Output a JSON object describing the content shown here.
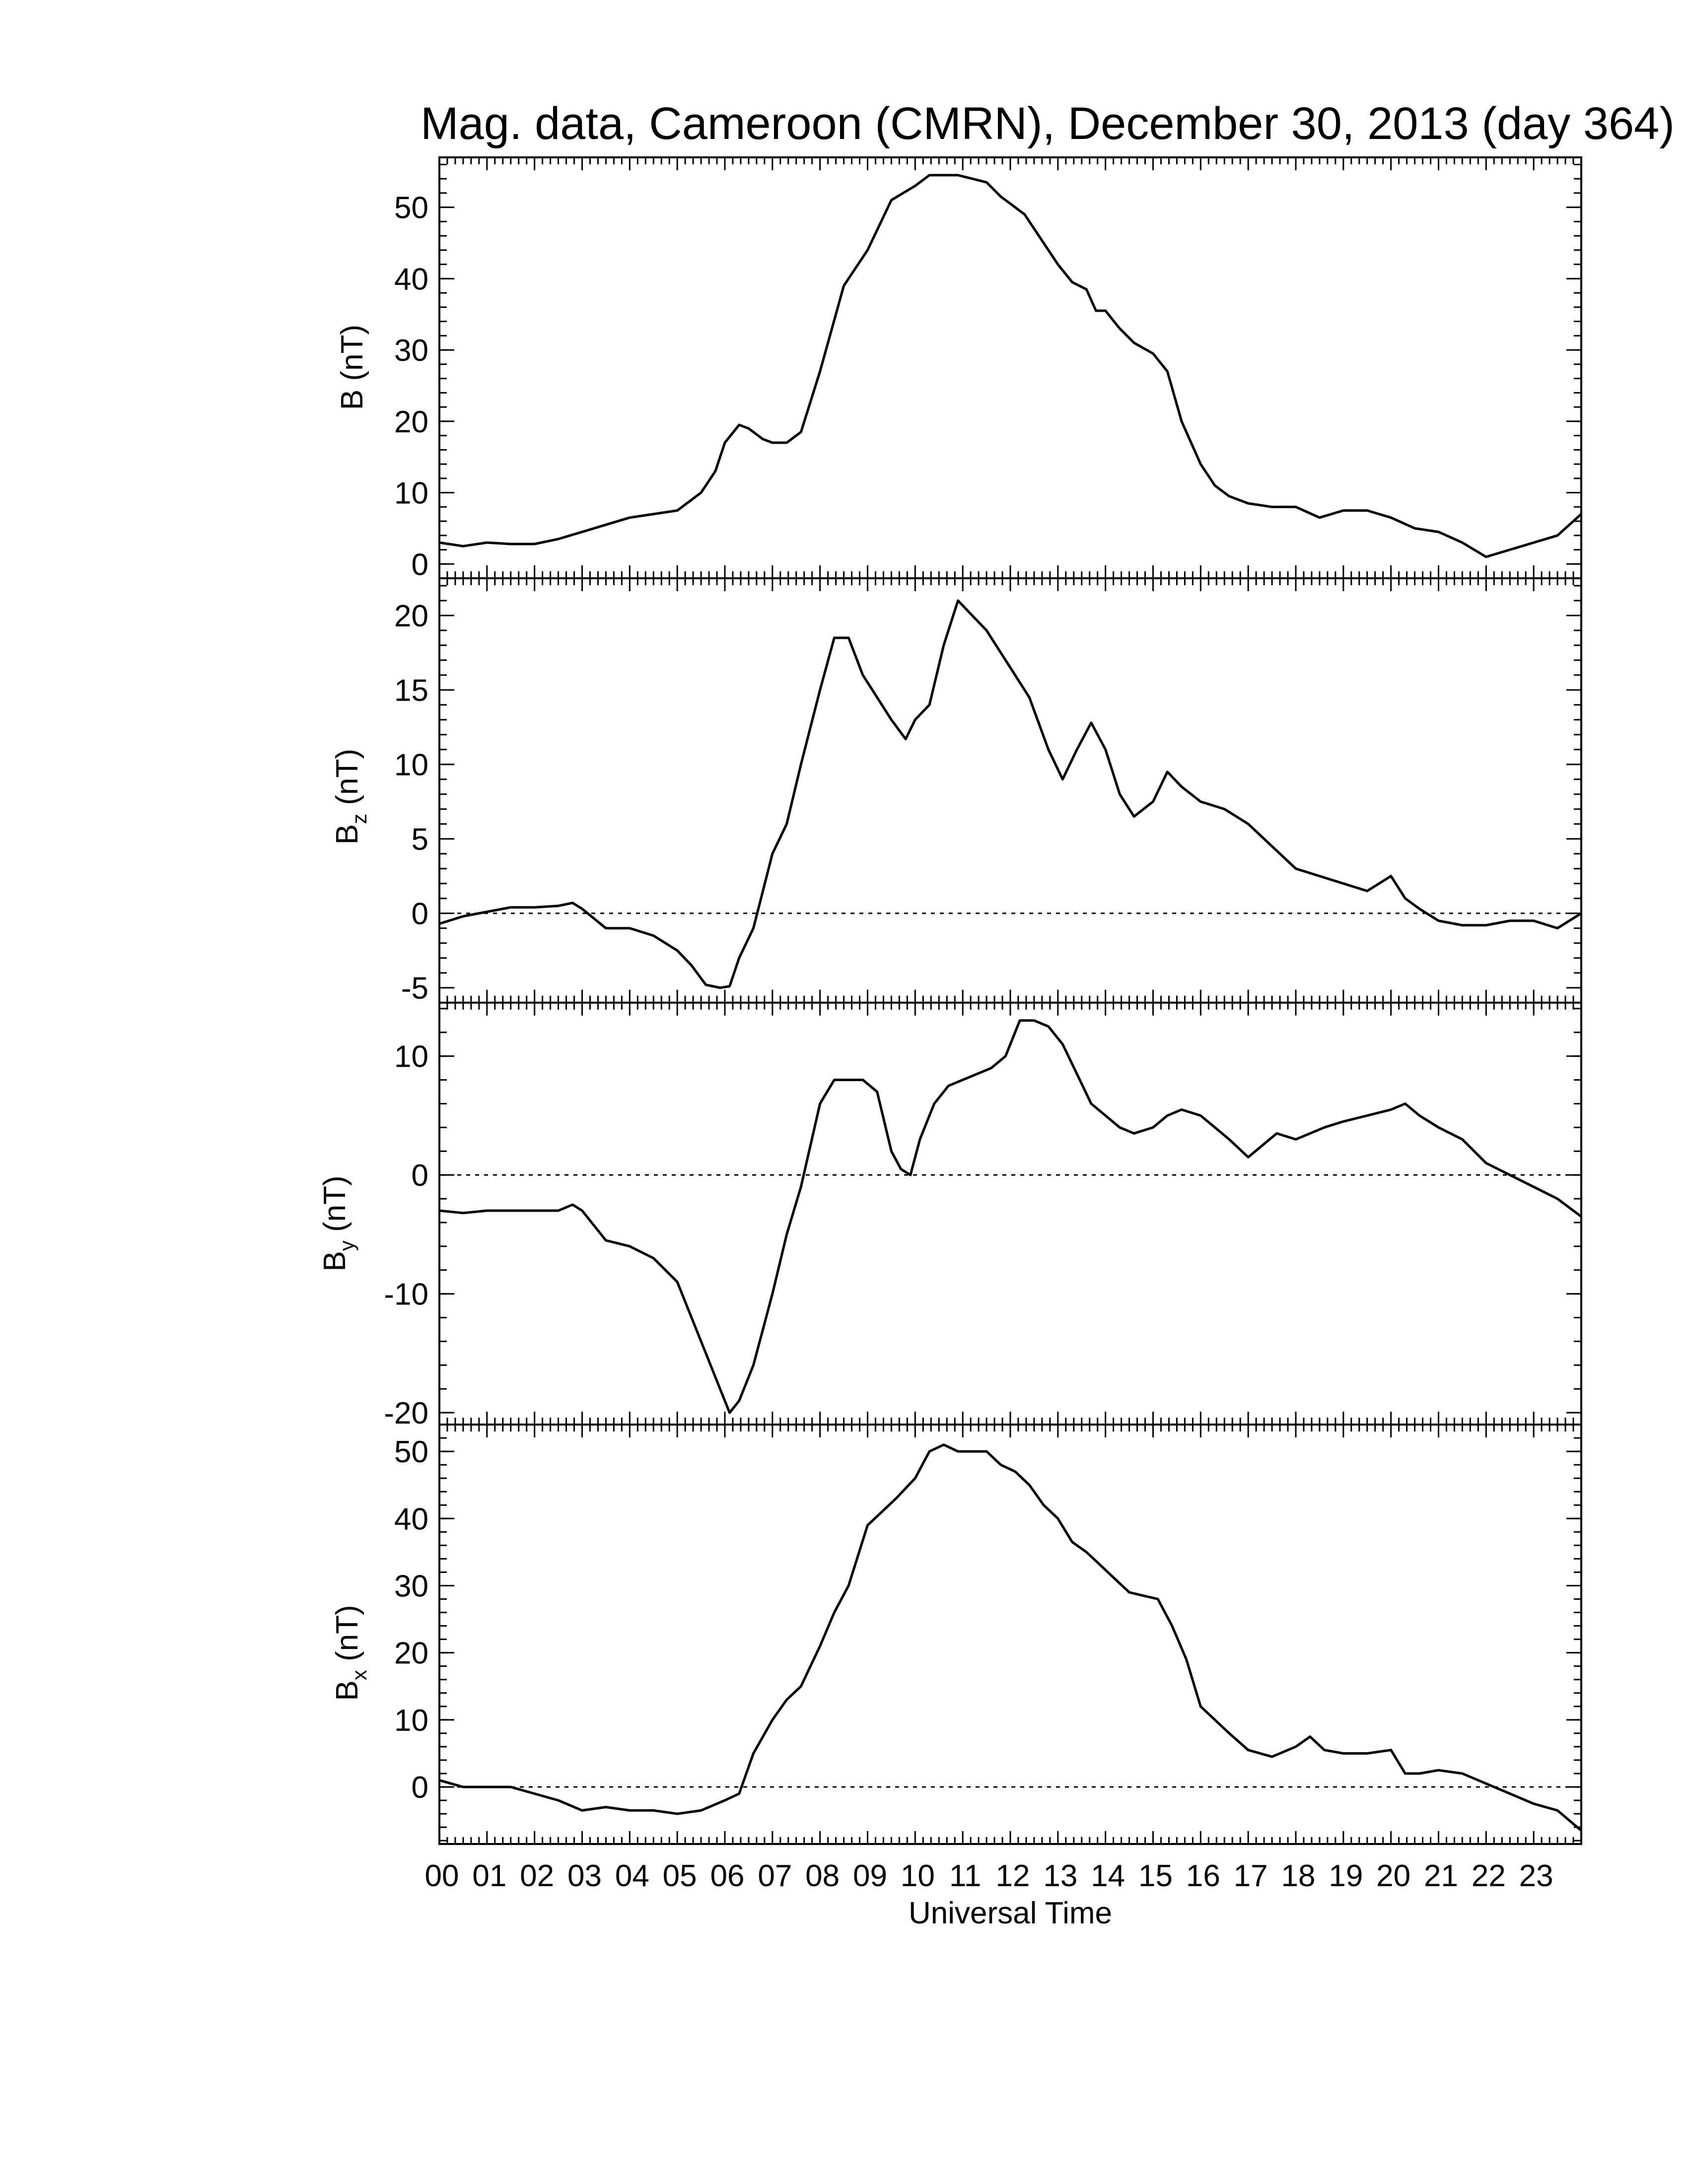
{
  "title": "Mag. data, Cameroon (CMRN), December 30, 2013 (day 364)",
  "chart_data": [
    {
      "type": "line",
      "ylabel": "B (nT)",
      "ylabel_sub": "",
      "ylim": [
        -2,
        57
      ],
      "yticks": [
        0,
        10,
        20,
        30,
        40,
        50
      ],
      "zero_line": false,
      "x": [
        0,
        0.5,
        1,
        1.5,
        2,
        2.5,
        3,
        3.5,
        4,
        4.5,
        5,
        5.5,
        5.8,
        6,
        6.3,
        6.5,
        6.8,
        7,
        7.3,
        7.6,
        8,
        8.5,
        9,
        9.5,
        10,
        10.3,
        10.6,
        10.9,
        11.2,
        11.5,
        11.8,
        12,
        12.3,
        12.6,
        13,
        13.3,
        13.6,
        13.8,
        14,
        14.3,
        14.6,
        15,
        15.3,
        15.6,
        16,
        16.3,
        16.6,
        17,
        17.5,
        18,
        18.5,
        19,
        19.5,
        20,
        20.5,
        21,
        21.5,
        22,
        22.5,
        23,
        23.5,
        24
      ],
      "y": [
        3,
        2.5,
        3,
        2.8,
        2.8,
        3.5,
        4.5,
        5.5,
        6.5,
        7,
        7.5,
        10,
        13,
        17,
        19.5,
        19,
        17.5,
        17,
        17,
        18.5,
        27,
        39,
        44,
        51,
        53,
        54.5,
        54.5,
        54.5,
        54,
        53.5,
        51.5,
        50.5,
        49,
        46,
        42,
        39.5,
        38.5,
        35.5,
        35.5,
        33,
        31,
        29.5,
        27,
        20,
        14,
        11,
        9.5,
        8.5,
        8,
        8,
        6.5,
        7.5,
        7.5,
        6.5,
        5,
        4.5,
        3,
        1,
        2,
        3,
        4,
        7
      ]
    },
    {
      "type": "line",
      "ylabel": "B",
      "ylabel_sub": "z",
      "ylabel_unit": " (nT)",
      "ylim": [
        -6,
        22.5
      ],
      "yticks": [
        -5,
        0,
        5,
        10,
        15,
        20
      ],
      "zero_line": true,
      "x": [
        0,
        0.5,
        1,
        1.5,
        2,
        2.5,
        2.8,
        3,
        3.5,
        4,
        4.5,
        5,
        5.3,
        5.6,
        5.9,
        6.1,
        6.3,
        6.6,
        7,
        7.3,
        7.6,
        8,
        8.3,
        8.6,
        8.9,
        9.2,
        9.5,
        9.8,
        10,
        10.3,
        10.6,
        10.9,
        11.2,
        11.5,
        11.8,
        12.1,
        12.4,
        12.8,
        13.1,
        13.4,
        13.7,
        14,
        14.3,
        14.6,
        15,
        15.3,
        15.6,
        16,
        16.5,
        17,
        17.5,
        18,
        18.5,
        19,
        19.5,
        20,
        20.3,
        20.6,
        21,
        21.5,
        22,
        22.5,
        23,
        23.5,
        24
      ],
      "y": [
        -0.7,
        -0.2,
        0.1,
        0.4,
        0.4,
        0.5,
        0.7,
        0.3,
        -1,
        -1,
        -1.5,
        -2.5,
        -3.5,
        -4.8,
        -5,
        -4.9,
        -3,
        -1,
        4,
        6,
        10,
        15,
        18.5,
        18.5,
        16,
        14.5,
        13,
        11.7,
        13,
        14,
        18,
        21,
        20,
        19,
        17.5,
        16,
        14.5,
        11,
        9,
        11,
        12.8,
        11,
        8,
        6.5,
        7.5,
        9.5,
        8.5,
        7.5,
        7,
        6,
        4.5,
        3,
        2.5,
        2,
        1.5,
        2.5,
        1,
        0.3,
        -0.5,
        -0.8,
        -0.8,
        -0.5,
        -0.5,
        -1,
        0
      ]
    },
    {
      "type": "line",
      "ylabel": "B",
      "ylabel_sub": "y",
      "ylabel_unit": " (nT)",
      "ylim": [
        -21,
        14.5
      ],
      "yticks": [
        -20,
        -10,
        0,
        10
      ],
      "zero_line": true,
      "x": [
        0,
        0.5,
        1,
        1.5,
        2,
        2.5,
        2.8,
        3,
        3.5,
        4,
        4.5,
        5,
        5.3,
        5.6,
        5.9,
        6.1,
        6.3,
        6.6,
        7,
        7.3,
        7.6,
        8,
        8.3,
        8.6,
        8.9,
        9.2,
        9.5,
        9.7,
        9.9,
        10.1,
        10.4,
        10.7,
        11,
        11.3,
        11.6,
        11.9,
        12.2,
        12.5,
        12.8,
        13.1,
        13.4,
        13.7,
        14,
        14.3,
        14.6,
        15,
        15.3,
        15.6,
        16,
        16.3,
        16.6,
        17,
        17.3,
        17.6,
        18,
        18.3,
        18.6,
        19,
        19.5,
        20,
        20.3,
        20.6,
        21,
        21.5,
        22,
        22.5,
        23,
        23.5,
        24
      ],
      "y": [
        -3,
        -3.2,
        -3,
        -3,
        -3,
        -3,
        -2.5,
        -3,
        -5.5,
        -6,
        -7,
        -9,
        -12,
        -15,
        -18,
        -20,
        -19,
        -16,
        -10,
        -5,
        -1,
        6,
        8,
        8,
        8,
        7,
        2,
        0.5,
        0,
        3,
        6,
        7.5,
        8,
        8.5,
        9,
        10,
        13,
        13,
        12.5,
        11,
        8.5,
        6,
        5,
        4,
        3.5,
        4,
        5,
        5.5,
        5,
        4,
        3,
        1.5,
        2.5,
        3.5,
        3,
        3.5,
        4,
        4.5,
        5,
        5.5,
        6,
        5,
        4,
        3,
        1,
        0,
        -1,
        -2,
        -3.5
      ]
    },
    {
      "type": "line",
      "ylabel": "B",
      "ylabel_sub": "x",
      "ylabel_unit": " (nT)",
      "ylim": [
        -8.5,
        54
      ],
      "yticks": [
        0,
        10,
        20,
        30,
        40,
        50
      ],
      "zero_line": true,
      "x": [
        0,
        0.5,
        1,
        1.5,
        2,
        2.5,
        3,
        3.5,
        4,
        4.5,
        5,
        5.5,
        6,
        6.3,
        6.6,
        7,
        7.3,
        7.6,
        8,
        8.3,
        8.6,
        9,
        9.3,
        9.6,
        10,
        10.3,
        10.6,
        10.9,
        11.2,
        11.5,
        11.8,
        12.1,
        12.4,
        12.7,
        13,
        13.3,
        13.6,
        13.9,
        14.2,
        14.5,
        14.8,
        15.1,
        15.4,
        15.7,
        16,
        16.3,
        16.6,
        17,
        17.5,
        18,
        18.3,
        18.6,
        19,
        19.5,
        20,
        20.3,
        20.6,
        21,
        21.5,
        22,
        22.5,
        23,
        23.5,
        24
      ],
      "y": [
        1,
        0,
        0,
        0,
        -1,
        -2,
        -3.5,
        -3,
        -3.5,
        -3.5,
        -4,
        -3.5,
        -2,
        -1,
        5,
        10,
        13,
        15,
        21,
        26,
        30,
        39,
        41,
        43,
        46,
        50,
        51,
        50,
        50,
        50,
        48,
        47,
        45,
        42,
        40,
        36.5,
        35,
        33,
        31,
        29,
        28.5,
        28,
        24,
        19,
        12,
        10,
        8,
        5.5,
        4.5,
        6,
        7.5,
        5.5,
        5,
        5,
        5.5,
        2,
        2,
        2.5,
        2,
        0.5,
        -1,
        -2.5,
        -3.5,
        -6.5
      ]
    }
  ],
  "x_axis": {
    "label": "Universal Time",
    "range": [
      0,
      24
    ],
    "tick_labels": [
      "00",
      "01",
      "02",
      "03",
      "04",
      "05",
      "06",
      "07",
      "08",
      "09",
      "10",
      "11",
      "12",
      "13",
      "14",
      "15",
      "16",
      "17",
      "18",
      "19",
      "20",
      "21",
      "22",
      "23"
    ]
  }
}
